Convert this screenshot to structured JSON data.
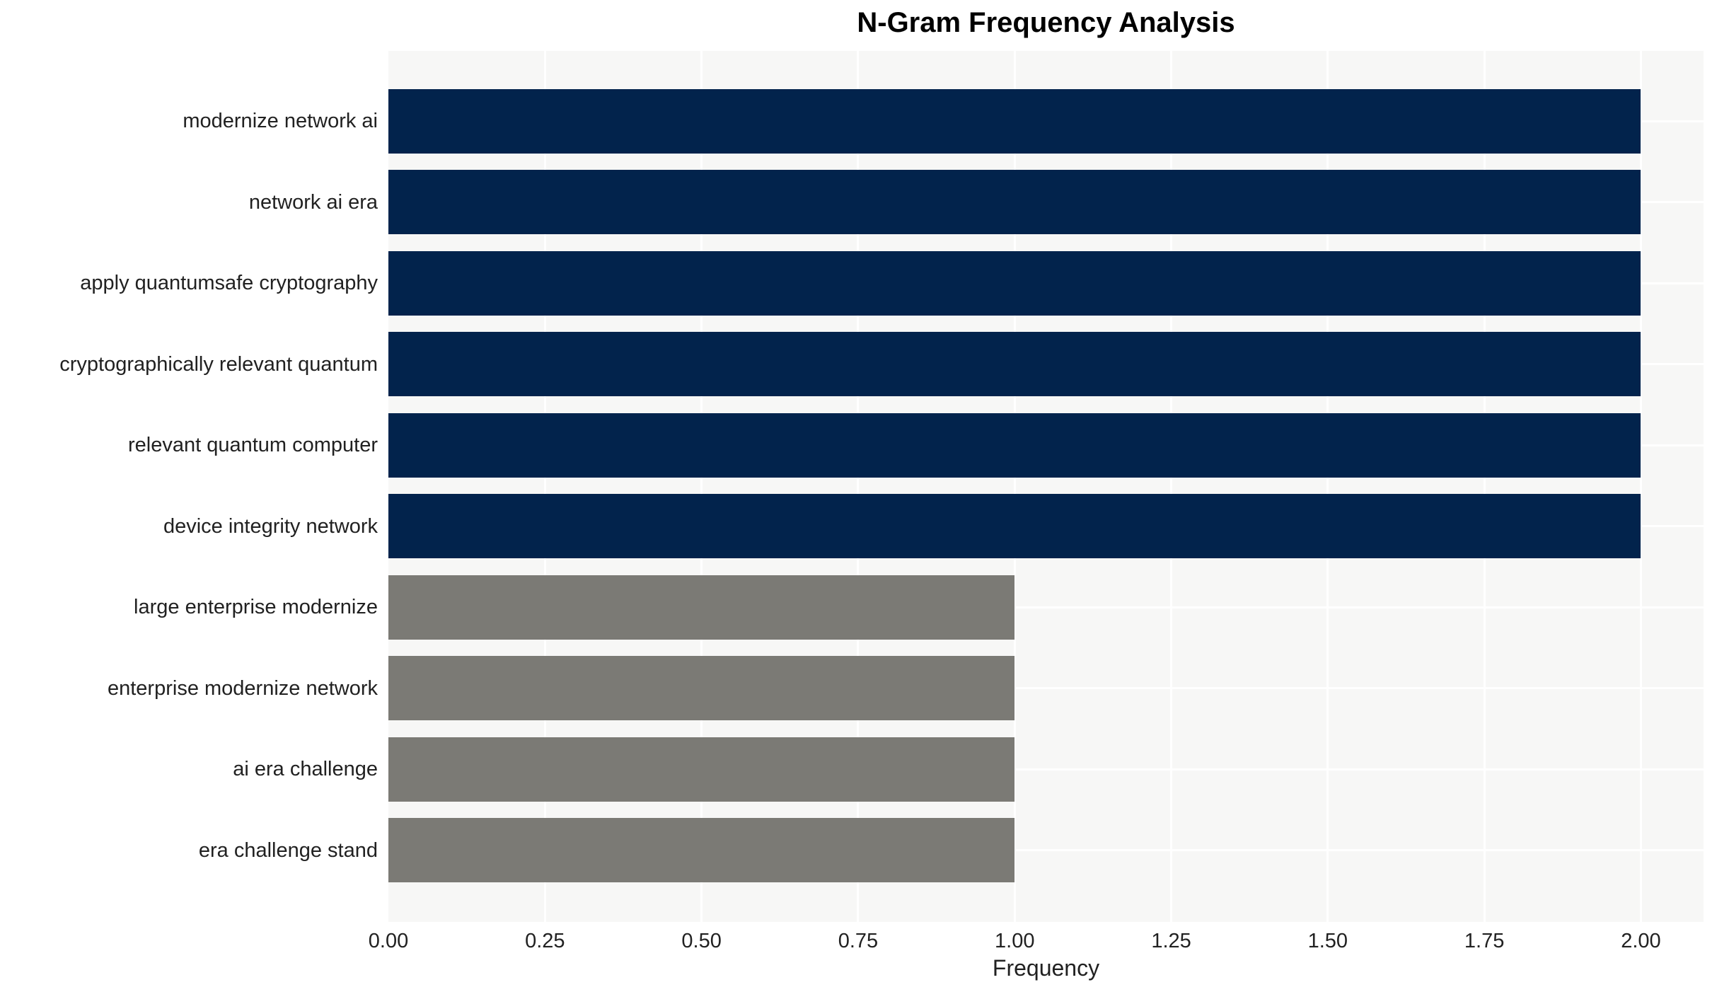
{
  "chart_data": {
    "type": "bar",
    "orientation": "horizontal",
    "title": "N-Gram Frequency Analysis",
    "xlabel": "Frequency",
    "ylabel": "",
    "categories": [
      "modernize network ai",
      "network ai era",
      "apply quantumsafe cryptography",
      "cryptographically relevant quantum",
      "relevant quantum computer",
      "device integrity network",
      "large enterprise modernize",
      "enterprise modernize network",
      "ai era challenge",
      "era challenge stand"
    ],
    "values": [
      2,
      2,
      2,
      2,
      2,
      2,
      1,
      1,
      1,
      1
    ],
    "bar_colors": [
      "#02234c",
      "#02234c",
      "#02234c",
      "#02234c",
      "#02234c",
      "#02234c",
      "#7b7a75",
      "#7b7a75",
      "#7b7a75",
      "#7b7a75"
    ],
    "xlim": [
      0,
      2.1
    ],
    "xticks": [
      0.0,
      0.25,
      0.5,
      0.75,
      1.0,
      1.25,
      1.5,
      1.75,
      2.0
    ],
    "xtick_labels": [
      "0.00",
      "0.25",
      "0.50",
      "0.75",
      "1.00",
      "1.25",
      "1.50",
      "1.75",
      "2.00"
    ],
    "grid": true,
    "legend": false,
    "colors": {
      "high_freq_bar": "#02234c",
      "low_freq_bar": "#7b7a75",
      "plot_background": "#f7f7f6",
      "gridline": "#ffffff",
      "tick_text": "#212121",
      "title_text": "#000000"
    }
  }
}
